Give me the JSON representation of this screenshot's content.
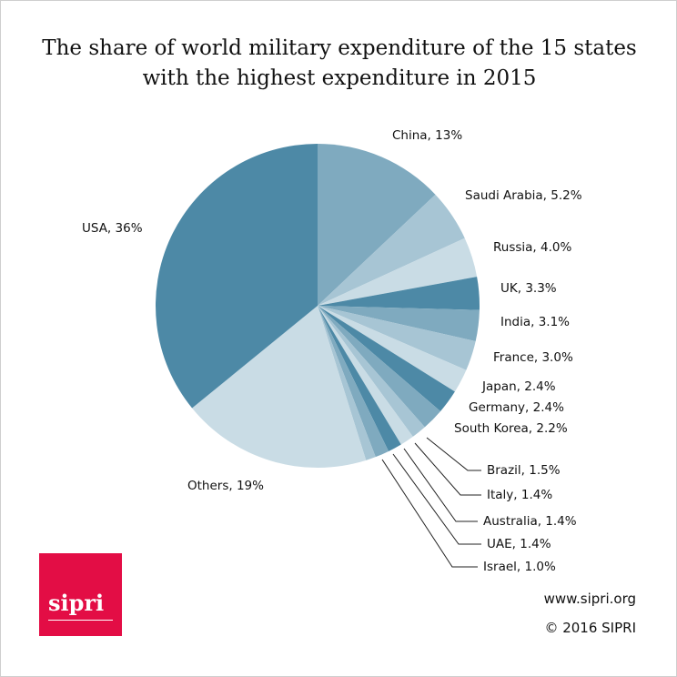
{
  "chart_data": {
    "type": "pie",
    "title": "The share of world military expenditure of the 15 states with the highest expenditure in 2015",
    "title_lines": [
      "The share of world military expenditure of the 15 states",
      "with the highest expenditure in 2015"
    ],
    "start": "top, clockwise from China",
    "slices": [
      {
        "name": "China",
        "value": 13,
        "label": "China, 13%",
        "color": "#7faabf"
      },
      {
        "name": "Saudi Arabia",
        "value": 5.2,
        "label": "Saudi Arabia, 5.2%",
        "color": "#a7c5d4"
      },
      {
        "name": "Russia",
        "value": 4.0,
        "label": "Russia, 4.0%",
        "color": "#c9dce5"
      },
      {
        "name": "UK",
        "value": 3.3,
        "label": "UK, 3.3%",
        "color": "#4d89a6"
      },
      {
        "name": "India",
        "value": 3.1,
        "label": "India, 3.1%",
        "color": "#7faabf"
      },
      {
        "name": "France",
        "value": 3.0,
        "label": "France, 3.0%",
        "color": "#a7c5d4"
      },
      {
        "name": "Japan",
        "value": 2.4,
        "label": "Japan, 2.4%",
        "color": "#c9dce5"
      },
      {
        "name": "Germany",
        "value": 2.4,
        "label": "Germany, 2.4%",
        "color": "#4d89a6"
      },
      {
        "name": "South Korea",
        "value": 2.2,
        "label": "South Korea, 2.2%",
        "color": "#7faabf"
      },
      {
        "name": "Brazil",
        "value": 1.5,
        "label": "Brazil, 1.5%",
        "color": "#a7c5d4"
      },
      {
        "name": "Italy",
        "value": 1.4,
        "label": "Italy, 1.4%",
        "color": "#c9dce5"
      },
      {
        "name": "Australia",
        "value": 1.4,
        "label": "Australia, 1.4%",
        "color": "#4d89a6"
      },
      {
        "name": "UAE",
        "value": 1.4,
        "label": "UAE, 1.4%",
        "color": "#7faabf"
      },
      {
        "name": "Israel",
        "value": 1.0,
        "label": "Israel, 1.0%",
        "color": "#a7c5d4"
      },
      {
        "name": "Others",
        "value": 19,
        "label": "Others, 19%",
        "color": "#c9dce5"
      },
      {
        "name": "USA",
        "value": 36,
        "label": "USA, 36%",
        "color": "#4d89a6"
      }
    ]
  },
  "footer": {
    "url": "www.sipri.org",
    "copyright": "© 2016 SIPRI"
  },
  "logo": {
    "text": "sipri",
    "color": "#e30d45"
  }
}
